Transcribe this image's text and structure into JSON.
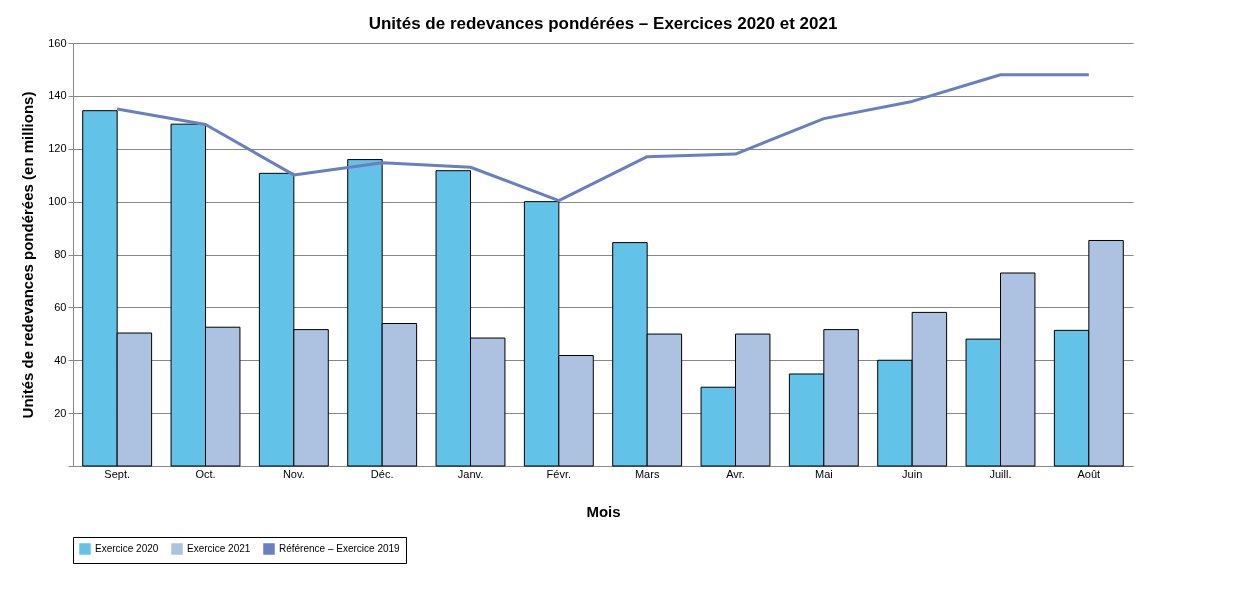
{
  "chart_data": {
    "type": "bar",
    "title": "Unités de redevances pondérées – Exercices 2020 et 2021",
    "xlabel": "Mois",
    "ylabel": "Unités de redevances pondérées (en millions)",
    "categories": [
      "Sept.",
      "Oct.",
      "Nov.",
      "Déc.",
      "Janv.",
      "Févr.",
      "Mars",
      "Avr.",
      "Mai",
      "Juin",
      "Juill.",
      "Août"
    ],
    "series": [
      {
        "name": "Exercice 2020",
        "color": "#63c2e8",
        "values": [
          134.4,
          129.3,
          110.7,
          115.9,
          111.7,
          100,
          84.5,
          29.8,
          34.8,
          40,
          48,
          51.3
        ]
      },
      {
        "name": "Exercice 2021",
        "color": "#adc2e1",
        "values": [
          50.3,
          52.5,
          51.6,
          53.9,
          48.4,
          41.8,
          49.9,
          49.9,
          51.6,
          58.1,
          73,
          85.3
        ]
      },
      {
        "name": "Référence – Exercice 2019",
        "type": "line",
        "color": "#6a7fbf",
        "values": [
          135,
          129.2,
          110.1,
          114.7,
          113,
          100.4,
          117,
          118,
          131.4,
          137.9,
          148,
          148
        ]
      }
    ],
    "ylim": [
      0,
      160
    ],
    "yticks": [
      {
        "value": 0,
        "label": null
      },
      20,
      40,
      60,
      80,
      100,
      120,
      140,
      160
    ],
    "grid": "y",
    "legend": "bottom"
  }
}
